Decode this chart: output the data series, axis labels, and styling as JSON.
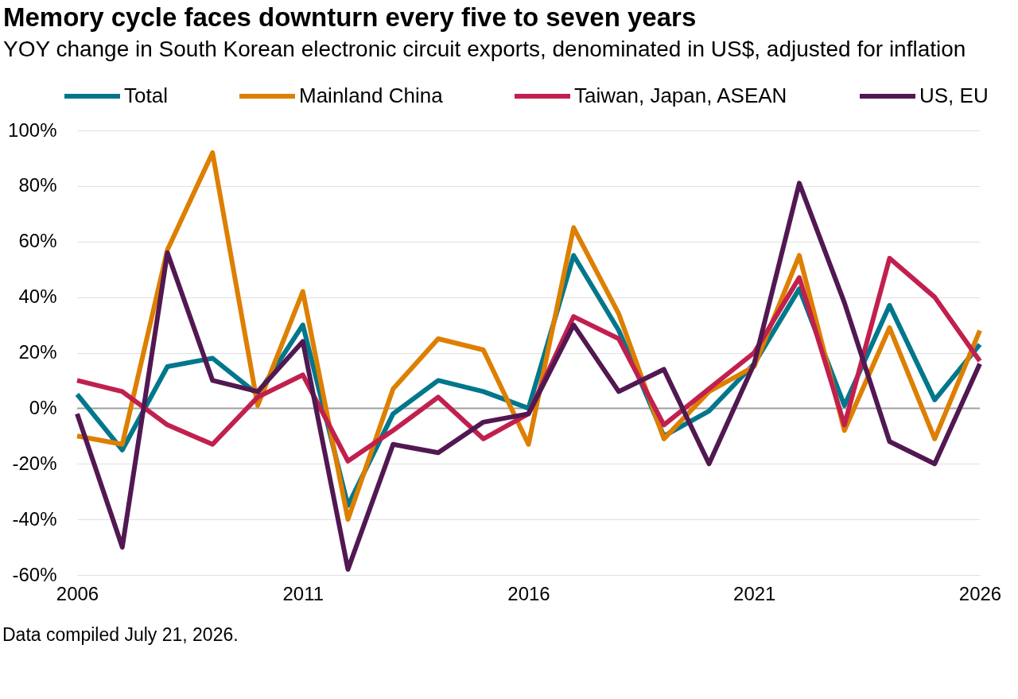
{
  "chart_data": {
    "type": "line",
    "title": "Memory cycle faces downturn every five to seven years",
    "subtitle": "YOY change in South Korean electronic circuit exports, denominated in US$, adjusted for inflation",
    "annotations": [
      "Data compiled July 21, 2026."
    ],
    "x": [
      2006,
      2007,
      2008,
      2009,
      2010,
      2011,
      2012,
      2013,
      2014,
      2015,
      2016,
      2017,
      2018,
      2019,
      2020,
      2021,
      2022,
      2023,
      2024,
      2025,
      2026
    ],
    "series": [
      {
        "name": "Total",
        "color": "#00778b",
        "values": [
          5,
          -15,
          15,
          18,
          5,
          30,
          -35,
          -2,
          10,
          6,
          0,
          55,
          28,
          -10,
          -1,
          16,
          43,
          1,
          37,
          3,
          23
        ]
      },
      {
        "name": "Mainland China",
        "color": "#dd7f00",
        "values": [
          -10,
          -13,
          57,
          92,
          1,
          42,
          -40,
          7,
          25,
          21,
          -13,
          65,
          34,
          -11,
          6,
          15,
          55,
          -8,
          29,
          -11,
          28
        ]
      },
      {
        "name": "Taiwan, Japan, ASEAN",
        "color": "#c1204f",
        "values": [
          10,
          6,
          -6,
          -13,
          4,
          12,
          -19,
          -8,
          4,
          -11,
          -2,
          33,
          25,
          -6,
          7,
          20,
          47,
          -6,
          54,
          40,
          17
        ]
      },
      {
        "name": "US, EU",
        "color": "#521852",
        "values": [
          -2,
          -50,
          56,
          10,
          6,
          24,
          -58,
          -13,
          -16,
          -5,
          -2,
          30,
          6,
          14,
          -20,
          16,
          81,
          38,
          -12,
          -20,
          16
        ]
      }
    ],
    "xlim": [
      2006,
      2026
    ],
    "xticks": [
      2006,
      2011,
      2016,
      2021,
      2026
    ],
    "ylim": [
      -60,
      100
    ],
    "yticks": [
      {
        "value": -60,
        "label": "-60%"
      },
      {
        "value": -40,
        "label": "-40%"
      },
      {
        "value": -20,
        "label": "-20%"
      },
      {
        "value": 0,
        "label": "0%"
      },
      {
        "value": 20,
        "label": "20%"
      },
      {
        "value": 40,
        "label": "40%"
      },
      {
        "value": 60,
        "label": "60%"
      },
      {
        "value": 80,
        "label": "80%"
      },
      {
        "value": 100,
        "label": "100%"
      }
    ],
    "grid": "y",
    "legend": "top",
    "line_style": "solid",
    "ref_lines": [
      {
        "axis": "y",
        "value": 0,
        "color": "#a0a0a0"
      }
    ]
  }
}
